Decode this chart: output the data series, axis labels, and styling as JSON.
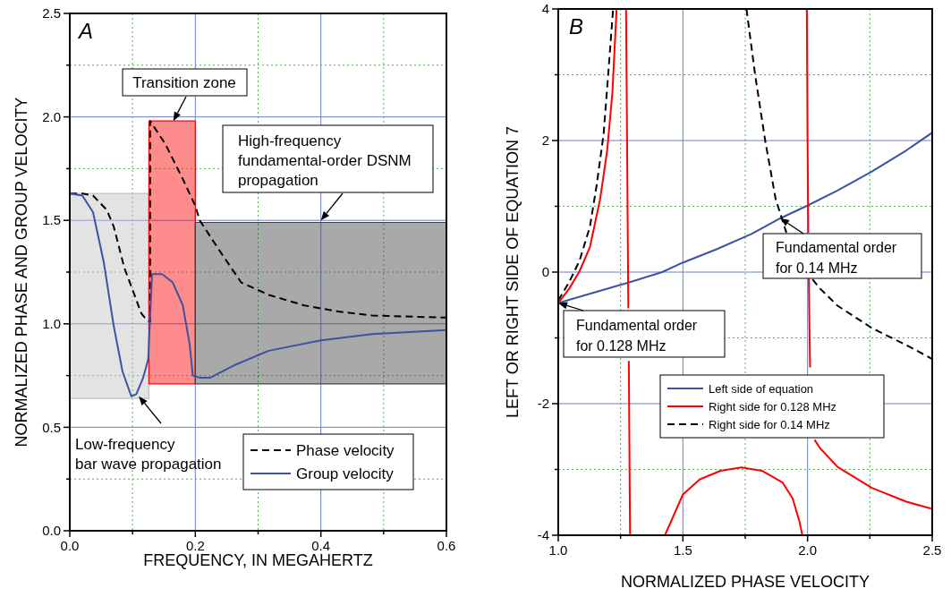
{
  "chart_data": [
    {
      "type": "line",
      "title": "A",
      "xlabel": "FREQUENCY, IN MEGAHERTZ",
      "ylabel": "NORMALIZED PHASE AND GROUP VELOCITY",
      "xlim": [
        0,
        0.6
      ],
      "xticks": [
        {
          "value": 0,
          "label": "0.0"
        },
        {
          "value": 0.1,
          "label": null
        },
        {
          "value": 0.2,
          "label": "0.2"
        },
        {
          "value": 0.3,
          "label": null
        },
        {
          "value": 0.4,
          "label": "0.4"
        },
        {
          "value": 0.5,
          "label": null
        },
        {
          "value": 0.6,
          "label": "0.6"
        }
      ],
      "ylim": [
        0,
        2.5
      ],
      "yticks": [
        {
          "value": 0,
          "label": "0.0"
        },
        {
          "value": 0.25,
          "label": null
        },
        {
          "value": 0.5,
          "label": "0.5"
        },
        {
          "value": 0.75,
          "label": null
        },
        {
          "value": 1,
          "label": "1.0"
        },
        {
          "value": 1.25,
          "label": null
        },
        {
          "value": 1.5,
          "label": "1.5"
        },
        {
          "value": 1.75,
          "label": null
        },
        {
          "value": 2,
          "label": "2.0"
        },
        {
          "value": 2.25,
          "label": null
        },
        {
          "value": 2.5,
          "label": "2.5"
        }
      ],
      "grid": true,
      "legend": "bottom right",
      "annotations": [
        {
          "text": "Transition zone",
          "x": 0.165,
          "y": 1.98
        },
        {
          "text": "High-frequency fundamental-order DSNM propagation",
          "x": 0.4,
          "y": 1.5
        },
        {
          "text": "Low-frequency bar wave propagation",
          "x": 0.11,
          "y": 0.65
        }
      ],
      "series": [
        {
          "color": "#c0c0c0",
          "x": [
            0,
            0.126
          ],
          "values": [
            null,
            null
          ],
          "lower": [
            0.64,
            0.64
          ],
          "upper": [
            1.63,
            1.63
          ]
        },
        {
          "color": "#ff0000",
          "x": [
            0.126,
            0.2
          ],
          "values": [
            null,
            null
          ],
          "lower": [
            0.71,
            0.71
          ],
          "upper": [
            1.98,
            1.98
          ]
        },
        {
          "color": "#404040",
          "x": [
            0.2,
            0.6
          ],
          "values": [
            null,
            null
          ],
          "lower": [
            0.71,
            0.71
          ],
          "upper": [
            1.49,
            1.49
          ]
        },
        {
          "name": "Phase velocity",
          "color": "#000000",
          "line_style": "dashed",
          "x": [
            0,
            0.02,
            0.037,
            0.059,
            0.07,
            0.087,
            0.103,
            0.114,
            0.122,
            0.128,
            0.128,
            0.152,
            0.18,
            0.2,
            0.207,
            0.235,
            0.273,
            0.317,
            0.372,
            0.427,
            0.482,
            0.6
          ],
          "values": [
            1.63,
            1.63,
            1.62,
            1.55,
            1.47,
            1.27,
            1.14,
            1.05,
            1.02,
            1.01,
            1.98,
            1.87,
            1.7,
            1.57,
            1.5,
            1.37,
            1.2,
            1.14,
            1.09,
            1.06,
            1.04,
            1.03
          ]
        },
        {
          "name": "Group velocity",
          "color": "#3a53a4",
          "line_style": "solid",
          "x": [
            0,
            0.02,
            0.037,
            0.054,
            0.07,
            0.084,
            0.098,
            0.106,
            0.117,
            0.125,
            0.131,
            0.147,
            0.164,
            0.18,
            0.191,
            0.196,
            0.207,
            0.224,
            0.262,
            0.317,
            0.4,
            0.482,
            0.6
          ],
          "values": [
            1.63,
            1.62,
            1.54,
            1.3,
            0.99,
            0.77,
            0.65,
            0.66,
            0.74,
            0.83,
            1.24,
            1.24,
            1.2,
            1.09,
            0.9,
            0.75,
            0.74,
            0.74,
            0.8,
            0.87,
            0.92,
            0.95,
            0.97
          ]
        }
      ]
    },
    {
      "type": "line",
      "title": "B",
      "xlabel": "NORMALIZED PHASE VELOCITY",
      "ylabel": "LEFT OR RIGHT SIDE OF EQUATION 7",
      "xlim": [
        1,
        2.5
      ],
      "xticks": [
        {
          "value": 1,
          "label": "1.0"
        },
        {
          "value": 1.25,
          "label": null
        },
        {
          "value": 1.5,
          "label": "1.5"
        },
        {
          "value": 1.75,
          "label": null
        },
        {
          "value": 2,
          "label": "2.0"
        },
        {
          "value": 2.25,
          "label": null
        },
        {
          "value": 2.5,
          "label": "2.5"
        }
      ],
      "ylim": [
        -4,
        4
      ],
      "yticks": [
        -4,
        {
          "value": -3,
          "label": null
        },
        -2,
        {
          "value": -1,
          "label": null
        },
        0,
        {
          "value": 1,
          "label": null
        },
        2,
        {
          "value": 3,
          "label": null
        },
        4
      ],
      "grid": true,
      "legend": "bottom",
      "annotations": [
        {
          "text": "Fundamental order for 0.128 MHz",
          "x": 1,
          "y": -0.47
        },
        {
          "text": "Fundamental order for 0.14 MHz",
          "x": 1.89,
          "y": 0.82
        }
      ],
      "series": [
        {
          "name": "Left side of equation",
          "color": "#3a53a4",
          "line_style": "solid",
          "x": [
            1,
            1.154,
            1.29,
            1.417,
            1.497,
            1.637,
            1.775,
            1.892,
            1.999,
            2.12,
            2.258,
            2.396,
            2.5
          ],
          "values": [
            -0.47,
            -0.3,
            -0.15,
            0,
            0.14,
            0.35,
            0.58,
            0.82,
            1.01,
            1.24,
            1.53,
            1.85,
            2.12
          ]
        },
        {
          "name": "Right side for 0.128 MHz",
          "color": "#ff0000",
          "line_style": "solid",
          "x": [
            1,
            1.044,
            1.085,
            1.127,
            1.168,
            1.196,
            1.217,
            1.234,
            1.25,
            1.272,
            1.28,
            1.281,
            1.282,
            1.283,
            1.288,
            1.35,
            1.428,
            1.5,
            1.568,
            1.651,
            1.734,
            1.817,
            1.9,
            1.94,
            1.968,
            1.979,
            1.99,
            1.997,
            2,
            2.003,
            2.004,
            2.005,
            2.01,
            2.02,
            2.028,
            2.051,
            2.12,
            2.258,
            2.396,
            2.5
          ],
          "values": [
            -0.47,
            -0.25,
            0.01,
            0.38,
            1.11,
            1.84,
            2.72,
            4,
            null,
            4,
            0,
            -0.55,
            null,
            -1.35,
            -4,
            null,
            -4,
            -3.38,
            -3.15,
            -3.02,
            -2.97,
            -3.02,
            -3.2,
            -3.44,
            -3.8,
            -4,
            null,
            4,
            2,
            0.6,
            null,
            -0.1,
            -1.45,
            null,
            -2.55,
            -2.68,
            -2.96,
            -3.28,
            -3.49,
            -3.6
          ]
        },
        {
          "name": "Right side for 0.14 MHz",
          "color": "#000000",
          "line_style": "dashed",
          "x": [
            1,
            1.044,
            1.085,
            1.127,
            1.154,
            1.182,
            1.2,
            1.22,
            1.5,
            1.755,
            1.79,
            1.83,
            1.872,
            1.915,
            1.95,
            2.02,
            2.05,
            2.12,
            2.258,
            2.396,
            2.5
          ],
          "values": [
            -0.43,
            -0.15,
            0.17,
            0.69,
            1.32,
            2.1,
            2.99,
            4,
            null,
            4,
            2.99,
            2,
            1.11,
            0.6,
            null,
            -0.11,
            -0.25,
            -0.51,
            -0.85,
            -1.11,
            -1.32
          ]
        }
      ]
    }
  ]
}
